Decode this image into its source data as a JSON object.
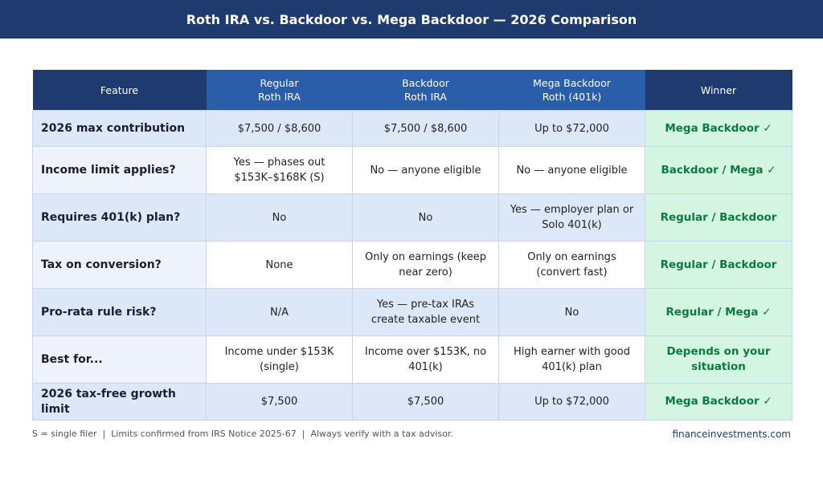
{
  "header": {
    "title": "Roth IRA vs. Backdoor vs. Mega Backdoor — 2026 Comparison"
  },
  "table": {
    "columns": [
      "Feature",
      "Regular\nRoth IRA",
      "Backdoor\nRoth IRA",
      "Mega Backdoor\nRoth (401k)",
      "Winner"
    ],
    "rows": [
      [
        "2026 max contribution",
        "$7,500 / $8,600",
        "$7,500 / $8,600",
        "Up to $72,000",
        "Mega Backdoor ✓"
      ],
      [
        "Income limit applies?",
        "Yes — phases out $153K–$168K (S)",
        "No — anyone eligible",
        "No — anyone eligible",
        "Backdoor / Mega ✓"
      ],
      [
        "Requires 401(k) plan?",
        "No",
        "No",
        "Yes — employer plan or Solo 401(k)",
        "Regular / Backdoor"
      ],
      [
        "Tax on conversion?",
        "None",
        "Only on earnings (keep near zero)",
        "Only on earnings (convert fast)",
        "Regular / Backdoor"
      ],
      [
        "Pro-rata rule risk?",
        "N/A",
        "Yes — pre-tax IRAs create taxable event",
        "No",
        "Regular / Mega ✓"
      ],
      [
        "Best for...",
        "Income under $153K (single)",
        "Income over $153K, no 401(k)",
        "High earner with good 401(k) plan",
        "Depends on your situation"
      ],
      [
        "2026 tax-free growth limit",
        "$7,500",
        "$7,500",
        "Up to $72,000",
        "Mega Backdoor ✓"
      ]
    ]
  },
  "footer": {
    "note": "S = single filer  |  Limits confirmed from IRS Notice 2025-67  |  Always verify with a tax advisor.",
    "source": "financeinvestments.com"
  }
}
